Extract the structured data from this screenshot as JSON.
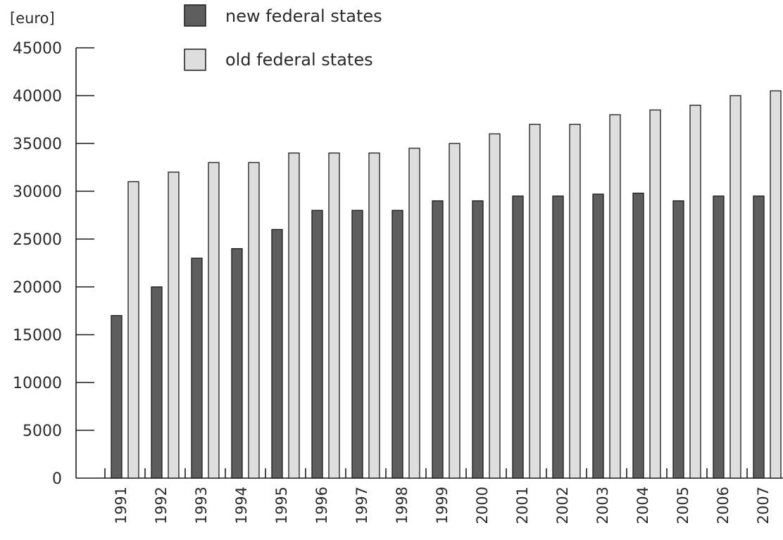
{
  "colors": {
    "new_federal": "#5e5e5e",
    "old_federal": "#dedede",
    "stroke": "#1a1a1a",
    "text": "#2a2a2a"
  },
  "chart_data": {
    "type": "bar",
    "ylabel": "[euro]",
    "ylim": [
      0,
      45000
    ],
    "yticks": [
      0,
      5000,
      10000,
      15000,
      20000,
      25000,
      30000,
      35000,
      40000,
      45000
    ],
    "grid": false,
    "legend_position": "top",
    "categories": [
      "1991",
      "1992",
      "1993",
      "1994",
      "1995",
      "1996",
      "1997",
      "1998",
      "1999",
      "2000",
      "2001",
      "2002",
      "2003",
      "2004",
      "2005",
      "2006",
      "2007"
    ],
    "series": [
      {
        "name": "new federal states",
        "color": "#5e5e5e",
        "values": [
          17000,
          20000,
          23000,
          24000,
          26000,
          28000,
          28000,
          28000,
          29000,
          29000,
          29500,
          29500,
          29700,
          29800,
          29000,
          29500,
          29500
        ]
      },
      {
        "name": "old federal states",
        "color": "#dedede",
        "values": [
          31000,
          32000,
          33000,
          33000,
          34000,
          34000,
          34000,
          34500,
          35000,
          36000,
          37000,
          37000,
          38000,
          38500,
          39000,
          40000,
          40500
        ]
      }
    ]
  }
}
